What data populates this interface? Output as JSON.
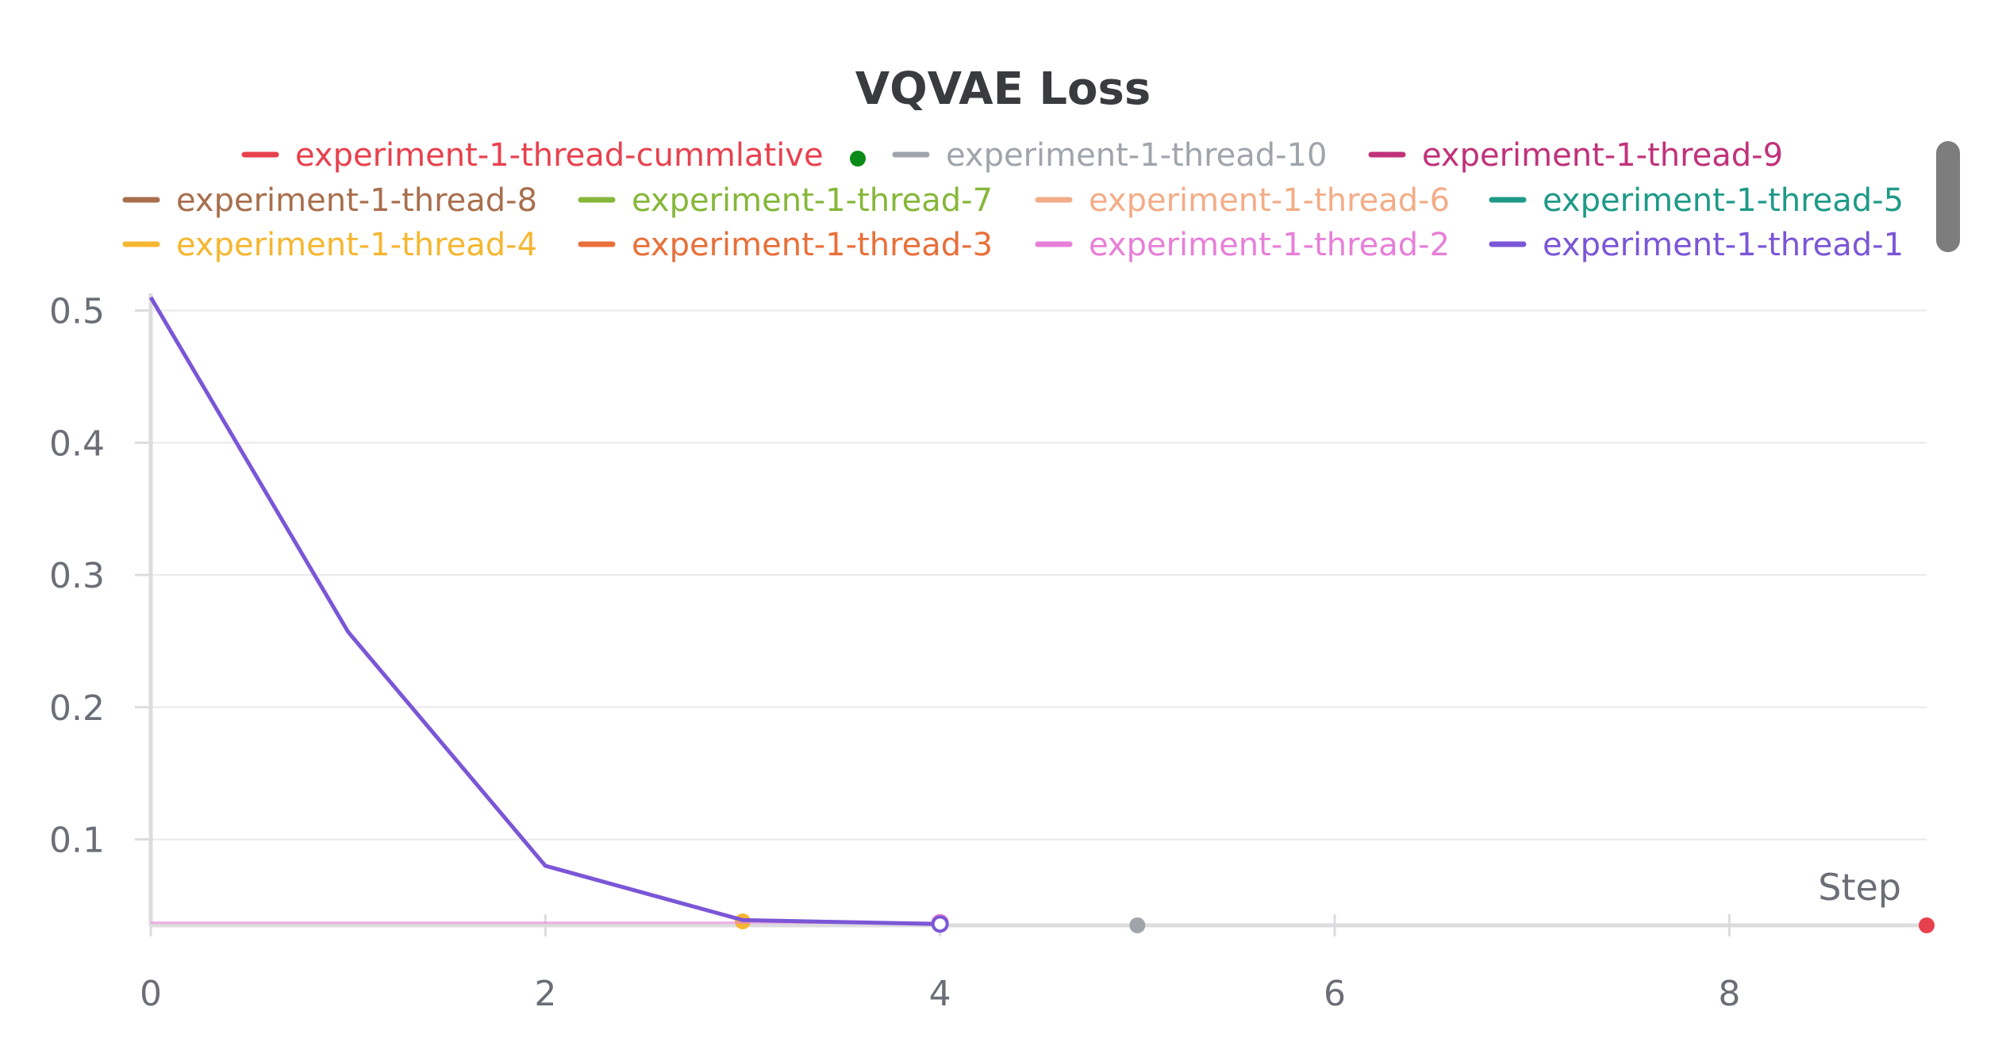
{
  "chart_data": {
    "type": "line",
    "title": "VQVAE Loss",
    "xlabel": "Step",
    "ylabel": "",
    "xlim": [
      0,
      9
    ],
    "ylim": [
      0.035,
      0.51
    ],
    "x_ticks": [
      0,
      2,
      4,
      6,
      8
    ],
    "y_ticks": [
      0.1,
      0.2,
      0.3,
      0.4,
      0.5
    ],
    "grid": true,
    "legend_position": "top",
    "series": [
      {
        "name": "experiment-1-thread-cummlative",
        "color": "#e8414e",
        "x": [
          9
        ],
        "y": [
          0.035
        ]
      },
      {
        "name": "experiment-1-thread-10",
        "color": "#a0a4ab",
        "x": [
          5
        ],
        "y": [
          0.035
        ]
      },
      {
        "name": "experiment-1-thread-9",
        "color": "#c0327a",
        "x": [],
        "y": []
      },
      {
        "name": "experiment-1-thread-8",
        "color": "#a86f4e",
        "x": [],
        "y": []
      },
      {
        "name": "experiment-1-thread-7",
        "color": "#86b73a",
        "x": [],
        "y": []
      },
      {
        "name": "experiment-1-thread-6",
        "color": "#f2ad88",
        "x": [],
        "y": []
      },
      {
        "name": "experiment-1-thread-5",
        "color": "#1e9a87",
        "x": [],
        "y": []
      },
      {
        "name": "experiment-1-thread-4",
        "color": "#f5b731",
        "x": [
          3
        ],
        "y": [
          0.038
        ]
      },
      {
        "name": "experiment-1-thread-3",
        "color": "#e8703a",
        "x": [],
        "y": []
      },
      {
        "name": "experiment-1-thread-2",
        "color": "#e77fd8",
        "x": [
          0,
          1,
          2,
          3,
          4
        ],
        "y": [
          0.037,
          0.037,
          0.037,
          0.037,
          0.037
        ]
      },
      {
        "name": "experiment-1-thread-1",
        "color": "#7b56d6",
        "x": [
          0,
          1,
          2,
          3,
          4
        ],
        "y": [
          0.51,
          0.257,
          0.08,
          0.039,
          0.036
        ]
      }
    ],
    "marker_color": "#0a8a16"
  }
}
